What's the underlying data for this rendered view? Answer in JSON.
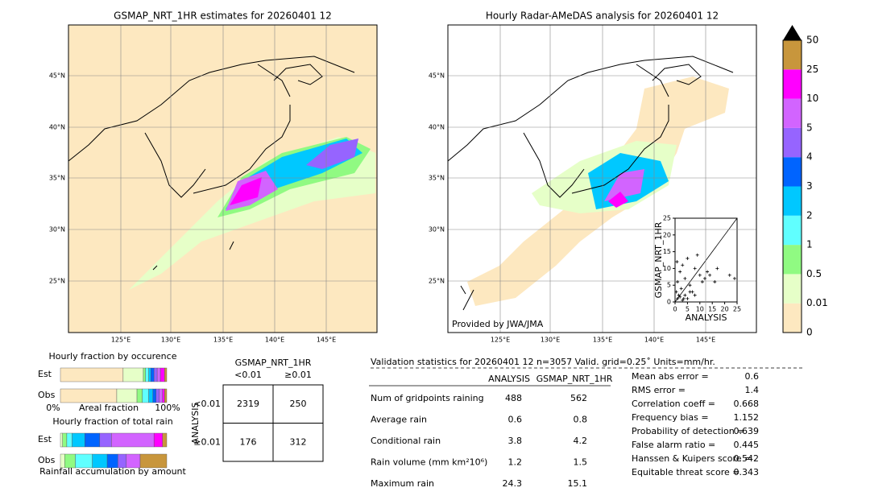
{
  "maps": [
    {
      "title": "GSMAP_NRT_1HR estimates for 20260401 12",
      "lat_labels": [
        "45°N",
        "40°N",
        "35°N",
        "30°N",
        "25°N"
      ],
      "lon_labels": [
        "125°E",
        "130°E",
        "135°E",
        "140°E",
        "145°E"
      ]
    },
    {
      "title": "Hourly Radar-AMeDAS analysis for 20260401 12",
      "lat_labels": [
        "45°N",
        "40°N",
        "35°N",
        "30°N",
        "25°N"
      ],
      "lon_labels": [
        "125°E",
        "130°E",
        "135°E",
        "140°E",
        "145°E"
      ],
      "credit": "Provided by JWA/JMA"
    }
  ],
  "colorbar": {
    "levels": [
      "0",
      "0.01",
      "0.5",
      "1",
      "2",
      "3",
      "4",
      "5",
      "10",
      "25",
      "50"
    ],
    "colors": [
      "#fde8c0",
      "#e6ffc8",
      "#90fa82",
      "#60ffff",
      "#00c8ff",
      "#0064ff",
      "#9664ff",
      "#d264ff",
      "#ff00ff",
      "#c8963c"
    ]
  },
  "chart_data": {
    "type": "scatter",
    "xlabel": "ANALYSIS",
    "ylabel": "GSMAP_NRT_1HR",
    "xlim": [
      0,
      25
    ],
    "ylim": [
      0,
      25
    ],
    "xticks": [
      0,
      5,
      10,
      15,
      20,
      25
    ],
    "yticks": [
      0,
      5,
      10,
      15,
      20,
      25
    ],
    "x": [
      0.5,
      1,
      1.5,
      2,
      2.5,
      3,
      3.5,
      4,
      5,
      6,
      7,
      8,
      9,
      10,
      11,
      12,
      13,
      14,
      16,
      17,
      22,
      24,
      1,
      2,
      3,
      4,
      5,
      6,
      8,
      0.8
    ],
    "y": [
      3,
      6,
      2,
      9,
      4,
      11,
      1,
      7,
      13,
      5,
      3,
      10,
      14,
      8,
      6,
      7,
      9,
      8,
      6,
      10,
      8,
      7,
      1,
      1.5,
      0.5,
      2,
      1,
      3,
      2,
      12
    ]
  },
  "occurrence": {
    "title": "Hourly fraction by occurence",
    "rows": [
      "Est",
      "Obs"
    ],
    "axis_left": "0%",
    "axis_mid": "Areal fraction",
    "axis_right": "100%",
    "segments": [
      [
        59,
        19,
        2,
        3,
        2,
        3,
        3,
        3,
        4,
        2
      ],
      [
        53,
        19,
        5,
        6,
        4,
        3,
        3,
        3,
        2,
        2
      ]
    ]
  },
  "total_rain": {
    "title": "Hourly fraction of total rain",
    "rows": [
      "Est",
      "Obs"
    ],
    "footer": "Rainfall accumulation by amount",
    "segments": [
      [
        2,
        4,
        5,
        12,
        14,
        11,
        40,
        8,
        4
      ],
      [
        4,
        10,
        16,
        14,
        10,
        8,
        13,
        0,
        25
      ]
    ]
  },
  "contingency": {
    "title": "GSMAP_NRT_1HR",
    "col_labels": [
      "<0.01",
      "≥0.01"
    ],
    "side_title": "ANALYSIS",
    "row_labels": [
      "<0.01",
      "≥0.01"
    ],
    "cells": [
      [
        2319,
        250
      ],
      [
        176,
        312
      ]
    ]
  },
  "stats": {
    "title": "Validation statistics for 20260401 12  n=3057 Valid. grid=0.25˚ Units=mm/hr.",
    "columns": [
      "ANALYSIS",
      "GSMAP_NRT_1HR"
    ],
    "rows": [
      [
        "Num of gridpoints raining",
        488,
        562
      ],
      [
        "Average rain",
        0.6,
        0.8
      ],
      [
        "Conditional rain",
        3.8,
        4.2
      ],
      [
        "Rain volume (mm km²10⁶)",
        1.2,
        1.5
      ],
      [
        "Maximum rain",
        24.3,
        15.1
      ]
    ],
    "scores": [
      [
        "Mean abs error =",
        0.6
      ],
      [
        "RMS error =",
        1.4
      ],
      [
        "Correlation coeff =",
        0.668
      ],
      [
        "Frequency bias =",
        1.152
      ],
      [
        "Probability of detection =",
        0.639
      ],
      [
        "False alarm ratio =",
        0.445
      ],
      [
        "Hanssen & Kuipers score =",
        0.542
      ],
      [
        "Equitable threat score =",
        0.343
      ]
    ]
  }
}
